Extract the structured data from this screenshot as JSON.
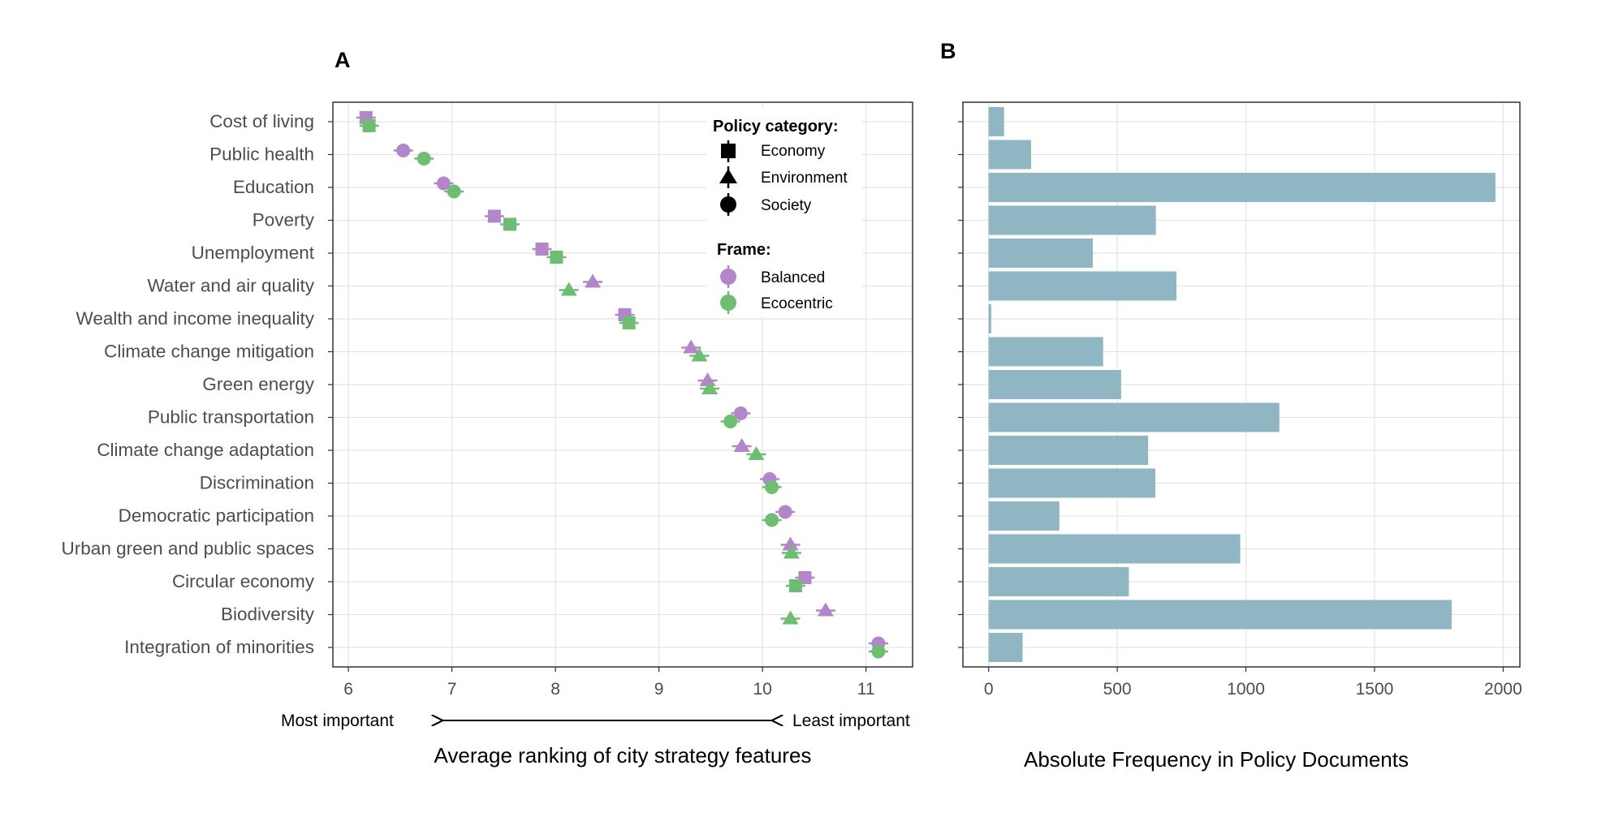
{
  "panels": {
    "a": {
      "label": "A",
      "xlabel": "Average ranking of city strategy features",
      "axis_left_note": "Most important",
      "axis_right_note": "Least important"
    },
    "b": {
      "label": "B",
      "xlabel": "Absolute Frequency in Policy Documents"
    }
  },
  "legend": {
    "category_title": "Policy category:",
    "categories": [
      {
        "name": "Economy",
        "shape": "square"
      },
      {
        "name": "Environment",
        "shape": "triangle"
      },
      {
        "name": "Society",
        "shape": "circle"
      }
    ],
    "frame_title": "Frame:",
    "frames": [
      {
        "name": "Balanced",
        "color": "#b386c9"
      },
      {
        "name": "Ecocentric",
        "color": "#6fbd72"
      }
    ]
  },
  "colors": {
    "balanced": "#b386c9",
    "ecocentric": "#6fbd72",
    "bar": "#8fb6c2"
  },
  "chart_data": [
    {
      "type": "scatter",
      "panel": "A",
      "xlabel": "Average ranking of city strategy features",
      "ylabel": "",
      "xlim": [
        5.85,
        11.45
      ],
      "xticks": [
        6,
        7,
        8,
        9,
        10,
        11
      ],
      "grid": true,
      "legend_position": "top-right",
      "categories": [
        "Cost of living",
        "Public health",
        "Education",
        "Poverty",
        "Unemployment",
        "Water and air quality",
        "Wealth and income inequality",
        "Climate change mitigation",
        "Green energy",
        "Public transportation",
        "Climate change adaptation",
        "Discrimination",
        "Democratic participation",
        "Urban green and public spaces",
        "Circular economy",
        "Biodiversity",
        "Integration of minorities"
      ],
      "shapes": [
        "square",
        "circle",
        "circle",
        "square",
        "square",
        "triangle",
        "square",
        "triangle",
        "triangle",
        "circle",
        "triangle",
        "circle",
        "circle",
        "triangle",
        "square",
        "triangle",
        "circle"
      ],
      "series": [
        {
          "name": "Balanced",
          "color": "#b386c9",
          "values": [
            6.17,
            6.53,
            6.92,
            7.41,
            7.87,
            8.36,
            8.67,
            9.31,
            9.47,
            9.79,
            9.8,
            10.07,
            10.22,
            10.27,
            10.41,
            10.61,
            11.12
          ]
        },
        {
          "name": "Ecocentric",
          "color": "#6fbd72",
          "values": [
            6.2,
            6.73,
            7.02,
            7.56,
            8.01,
            8.13,
            8.71,
            9.39,
            9.49,
            9.69,
            9.94,
            10.09,
            10.09,
            10.28,
            10.32,
            10.27,
            11.12
          ]
        }
      ]
    },
    {
      "type": "bar",
      "panel": "B",
      "orientation": "horizontal",
      "xlabel": "Absolute Frequency in Policy Documents",
      "ylabel": "",
      "xlim": [
        -100,
        2065
      ],
      "xticks": [
        0,
        500,
        1000,
        1500,
        2000
      ],
      "grid": true,
      "categories": [
        "Cost of living",
        "Public health",
        "Education",
        "Poverty",
        "Unemployment",
        "Water and air quality",
        "Wealth and income inequality",
        "Climate change mitigation",
        "Green energy",
        "Public transportation",
        "Climate change adaptation",
        "Discrimination",
        "Democratic participation",
        "Urban green and public spaces",
        "Circular economy",
        "Biodiversity",
        "Integration of minorities"
      ],
      "values": [
        60,
        165,
        1970,
        650,
        405,
        730,
        10,
        445,
        515,
        1130,
        620,
        648,
        275,
        978,
        545,
        1800,
        132
      ]
    }
  ]
}
